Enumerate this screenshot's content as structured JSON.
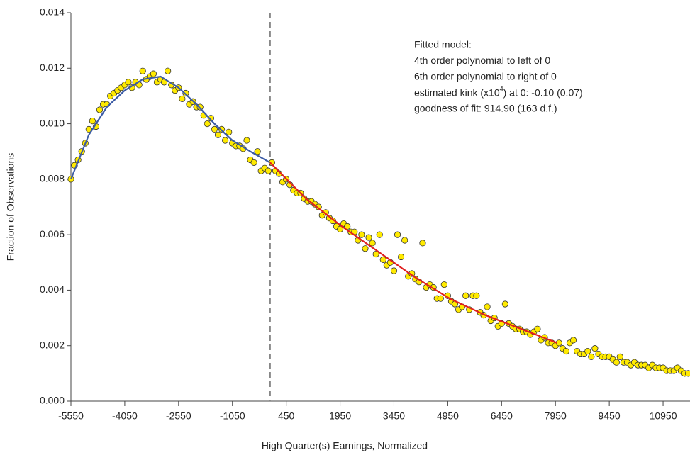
{
  "chart_data": {
    "type": "scatter",
    "xlabel": "High Quarter(s) Earnings, Normalized",
    "ylabel": "Fraction of Observations",
    "annotation": [
      "Fitted model:",
      "4th order polynomial to left of 0",
      "6th order polynomial to right of 0",
      [
        "estimated kink (x10",
        "4",
        ") at 0:  -0.10 (0.07)"
      ],
      "goodness of fit: 914.90 (163 d.f.)"
    ],
    "xlim": [
      -5550,
      11700
    ],
    "ylim": [
      0,
      0.014
    ],
    "xticks": [
      -5550,
      -4050,
      -2550,
      -1050,
      450,
      1950,
      3450,
      4950,
      6450,
      7950,
      9450,
      10950
    ],
    "yticks": [
      {
        "value": 0,
        "label": "0.000"
      },
      {
        "value": 0.002,
        "label": "0.002"
      },
      {
        "value": 0.004,
        "label": "0.004"
      },
      {
        "value": 0.006,
        "label": "0.006"
      },
      {
        "value": 0.008,
        "label": "0.008"
      },
      {
        "value": 0.01,
        "label": "0.010"
      },
      {
        "value": 0.012,
        "label": "0.012"
      },
      {
        "value": 0.014,
        "label": "0.014"
      }
    ],
    "vline": 0,
    "point_color": "#ffea00",
    "x": [
      -5550,
      -5450,
      -5350,
      -5250,
      -5150,
      -5050,
      -4950,
      -4850,
      -4750,
      -4650,
      -4550,
      -4450,
      -4350,
      -4250,
      -4150,
      -4050,
      -3950,
      -3850,
      -3750,
      -3650,
      -3550,
      -3450,
      -3350,
      -3250,
      -3150,
      -3050,
      -2950,
      -2850,
      -2750,
      -2650,
      -2550,
      -2450,
      -2350,
      -2250,
      -2150,
      -2050,
      -1950,
      -1850,
      -1750,
      -1650,
      -1550,
      -1450,
      -1350,
      -1250,
      -1150,
      -1050,
      -950,
      -850,
      -750,
      -650,
      -550,
      -450,
      -350,
      -250,
      -150,
      -50,
      50,
      150,
      250,
      350,
      450,
      550,
      650,
      750,
      850,
      950,
      1050,
      1150,
      1250,
      1350,
      1450,
      1550,
      1650,
      1750,
      1850,
      1950,
      2050,
      2150,
      2250,
      2350,
      2450,
      2550,
      2650,
      2750,
      2850,
      2950,
      3050,
      3150,
      3250,
      3350,
      3450,
      3550,
      3650,
      3750,
      3850,
      3950,
      4050,
      4150,
      4250,
      4350,
      4450,
      4550,
      4650,
      4750,
      4850,
      4950,
      5050,
      5150,
      5250,
      5350,
      5450,
      5550,
      5650,
      5750,
      5850,
      5950,
      6050,
      6150,
      6250,
      6350,
      6450,
      6550,
      6650,
      6750,
      6850,
      6950,
      7050,
      7150,
      7250,
      7350,
      7450,
      7550,
      7650,
      7750,
      7850,
      7950,
      8050,
      8150,
      8250,
      8350,
      8450,
      8550,
      8650,
      8750,
      8850,
      8950,
      9050,
      9150,
      9250,
      9350,
      9450,
      9550,
      9650,
      9750,
      9850,
      9950,
      10050,
      10150,
      10250,
      10350,
      10450,
      10550,
      10650,
      10750,
      10850,
      10950,
      11050,
      11150,
      11250,
      11350,
      11450,
      11550,
      11650
    ],
    "values": [
      0.008,
      0.0085,
      0.0087,
      0.009,
      0.0093,
      0.0098,
      0.0101,
      0.0099,
      0.0105,
      0.0107,
      0.0107,
      0.011,
      0.0111,
      0.0112,
      0.0113,
      0.0114,
      0.0115,
      0.0113,
      0.0115,
      0.0114,
      0.0119,
      0.0116,
      0.0117,
      0.0118,
      0.0115,
      0.0116,
      0.0115,
      0.0119,
      0.0114,
      0.0112,
      0.0113,
      0.0109,
      0.0111,
      0.0107,
      0.0108,
      0.0106,
      0.0106,
      0.0103,
      0.01,
      0.0102,
      0.0098,
      0.0096,
      0.0098,
      0.0094,
      0.0097,
      0.0093,
      0.0092,
      0.0092,
      0.0091,
      0.0094,
      0.0087,
      0.0086,
      0.009,
      0.0083,
      0.0084,
      0.0083,
      0.0086,
      0.0083,
      0.0082,
      0.0079,
      0.008,
      0.0078,
      0.0076,
      0.0075,
      0.0075,
      0.0073,
      0.0072,
      0.0072,
      0.0071,
      0.007,
      0.0067,
      0.0068,
      0.0066,
      0.0065,
      0.0063,
      0.0062,
      0.0064,
      0.0063,
      0.0061,
      0.0061,
      0.0058,
      0.006,
      0.0055,
      0.0059,
      0.0057,
      0.0053,
      0.006,
      0.0051,
      0.0049,
      0.005,
      0.0047,
      0.006,
      0.0052,
      0.0058,
      0.0045,
      0.0046,
      0.0044,
      0.0043,
      0.0057,
      0.0041,
      0.0042,
      0.0041,
      0.0037,
      0.0037,
      0.0042,
      0.0038,
      0.0036,
      0.0035,
      0.0033,
      0.0034,
      0.0038,
      0.0033,
      0.0038,
      0.0038,
      0.0032,
      0.0031,
      0.0034,
      0.0029,
      0.003,
      0.0027,
      0.0028,
      0.0035,
      0.0028,
      0.0027,
      0.0026,
      0.0026,
      0.0025,
      0.0025,
      0.0024,
      0.0025,
      0.0026,
      0.0022,
      0.0023,
      0.0021,
      0.0021,
      0.002,
      0.0021,
      0.0019,
      0.0018,
      0.0021,
      0.0022,
      0.0018,
      0.0017,
      0.0017,
      0.0018,
      0.0016,
      0.0019,
      0.0017,
      0.0016,
      0.0016,
      0.0016,
      0.0015,
      0.0014,
      0.0016,
      0.0014,
      0.0014,
      0.0013,
      0.0014,
      0.0013,
      0.0013,
      0.0013,
      0.0012,
      0.0013,
      0.0012,
      0.0012,
      0.0012,
      0.0011,
      0.0011,
      0.0011,
      0.0012,
      0.0011,
      0.001,
      0.001
    ],
    "fits": [
      {
        "color": "#3b5ba5",
        "x": [
          -5550,
          -5050,
          -4550,
          -4050,
          -3550,
          -3050,
          -2550,
          -2050,
          -1550,
          -1050,
          -550,
          0
        ],
        "values": [
          0.008,
          0.0096,
          0.0106,
          0.0112,
          0.0116,
          0.0117,
          0.0113,
          0.0107,
          0.01,
          0.0094,
          0.009,
          0.0086
        ]
      },
      {
        "color": "#e02020",
        "x": [
          0,
          1000,
          2000,
          3000,
          4000,
          5000,
          6000,
          7000,
          8000
        ],
        "values": [
          0.0086,
          0.0073,
          0.0063,
          0.0054,
          0.0045,
          0.0037,
          0.0031,
          0.0026,
          0.0021
        ]
      }
    ]
  }
}
